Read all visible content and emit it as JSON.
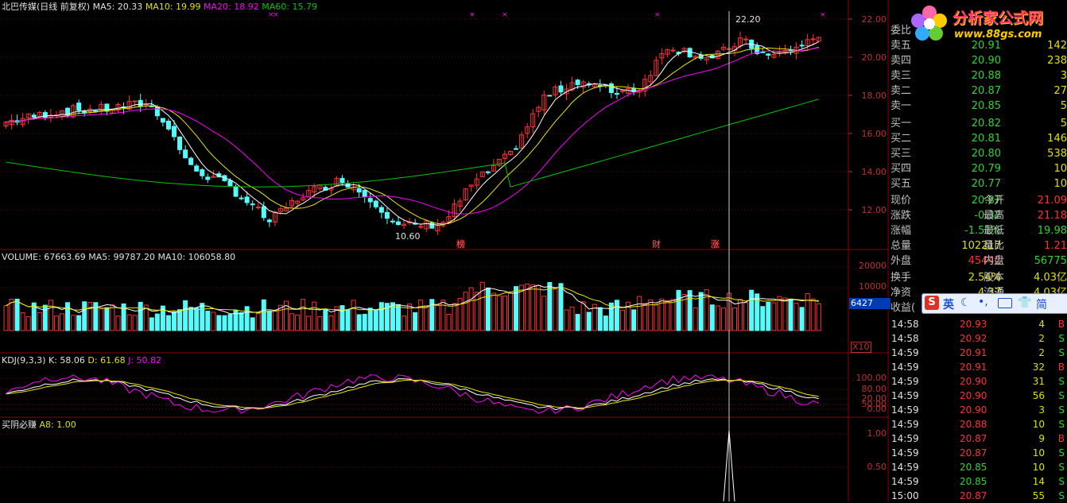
{
  "header": {
    "stock_title": "北巴传媒(日线 前复权)",
    "ma5": "MA5: 20.33",
    "ma10": "MA10: 19.99",
    "ma20": "MA20: 18.92",
    "ma60": "MA60: 15.79"
  },
  "price_axis": [
    "22.00",
    "20.00",
    "18.00",
    "16.00",
    "14.00",
    "12.00"
  ],
  "price_annotations": {
    "high": "22.20",
    "low": "10.60"
  },
  "event_markers": [
    "榜",
    "财",
    "涨"
  ],
  "volume_panel": {
    "header": "VOLUME: 67663.69",
    "ma5": "MA5: 99787.20",
    "ma10": "MA10: 106058.80",
    "axis": [
      "20000",
      "10000"
    ],
    "current_box": "6427",
    "unit": "X10"
  },
  "kdj_panel": {
    "header": "KDJ(9,3,3)",
    "k": "K: 58.06",
    "d": "D: 61.68",
    "j": "J: 50.82",
    "axis": [
      "100.00",
      "80.00",
      "50.00",
      "20.00",
      "0.00"
    ]
  },
  "signal_panel": {
    "header": "买阴必赚",
    "a8": "A8: 1.00",
    "axis": [
      "1.00",
      "0.50"
    ]
  },
  "logo": {
    "title": "分析家公式网",
    "url": "www.88gs.com"
  },
  "order_book": {
    "title": "委比",
    "sells": [
      {
        "label": "卖五",
        "price": "20.91",
        "vol": "142"
      },
      {
        "label": "卖四",
        "price": "20.90",
        "vol": "238"
      },
      {
        "label": "卖三",
        "price": "20.88",
        "vol": "3"
      },
      {
        "label": "卖二",
        "price": "20.87",
        "vol": "27"
      },
      {
        "label": "卖一",
        "price": "20.85",
        "vol": "5"
      }
    ],
    "buys": [
      {
        "label": "买一",
        "price": "20.82",
        "vol": "5"
      },
      {
        "label": "买二",
        "price": "20.81",
        "vol": "146"
      },
      {
        "label": "买三",
        "price": "20.80",
        "vol": "538"
      },
      {
        "label": "买四",
        "price": "20.79",
        "vol": "10"
      },
      {
        "label": "买五",
        "price": "20.77",
        "vol": "10"
      }
    ]
  },
  "quote": {
    "rows": [
      {
        "l1": "现价",
        "v1": "20.87",
        "l2": "今开",
        "v2": "21.09"
      },
      {
        "l1": "涨跌",
        "v1": "-0.32",
        "l2": "最高",
        "v2": "21.18"
      },
      {
        "l1": "涨幅",
        "v1": "-1.51%",
        "l2": "最低",
        "v2": "19.98"
      },
      {
        "l1": "总量",
        "v1": "102217",
        "l2": "量比",
        "v2": "1.21"
      },
      {
        "l1": "外盘",
        "v1": "45442",
        "l2": "内盘",
        "v2": "56775"
      }
    ],
    "turnover_label": "换手",
    "turnover": "2.54%",
    "equity_label": "股本",
    "equity": "4.03亿",
    "net_label": "净资",
    "net": "4.37",
    "float_label": "流通",
    "float": "4.03亿",
    "earn_label": "收益("
  },
  "ime_bar": {
    "s": "S",
    "lang": "英",
    "icons": [
      "moon-icon",
      "punct-icon",
      "keyboard-icon",
      "shirt-icon"
    ],
    "mode": "简"
  },
  "ticks": [
    {
      "time": "14:58",
      "price": "20.93",
      "vol": "4",
      "side": "B"
    },
    {
      "time": "14:58",
      "price": "20.92",
      "vol": "2",
      "side": "S"
    },
    {
      "time": "14:59",
      "price": "20.91",
      "vol": "2",
      "side": "S"
    },
    {
      "time": "14:59",
      "price": "20.91",
      "vol": "32",
      "side": "B"
    },
    {
      "time": "14:59",
      "price": "20.90",
      "vol": "31",
      "side": "S"
    },
    {
      "time": "14:59",
      "price": "20.90",
      "vol": "56",
      "side": "S"
    },
    {
      "time": "14:59",
      "price": "20.90",
      "vol": "3",
      "side": "S"
    },
    {
      "time": "14:59",
      "price": "20.88",
      "vol": "10",
      "side": "S"
    },
    {
      "time": "14:59",
      "price": "20.87",
      "vol": "9",
      "side": "B"
    },
    {
      "time": "14:59",
      "price": "20.87",
      "vol": "10",
      "side": "S"
    },
    {
      "time": "14:59",
      "price": "20.85",
      "vol": "10",
      "side": "S"
    },
    {
      "time": "14:59",
      "price": "20.85",
      "vol": "14",
      "side": "S"
    },
    {
      "time": "15:00",
      "price": "20.87",
      "vol": "55",
      "side": "S"
    }
  ],
  "colors": {
    "up": "#ff3232",
    "down": "#54fcfc",
    "ma5": "#ffffff",
    "ma10": "#e8e800",
    "ma20": "#ff00ff",
    "ma60": "#00c800",
    "grid": "#8b0000"
  }
}
